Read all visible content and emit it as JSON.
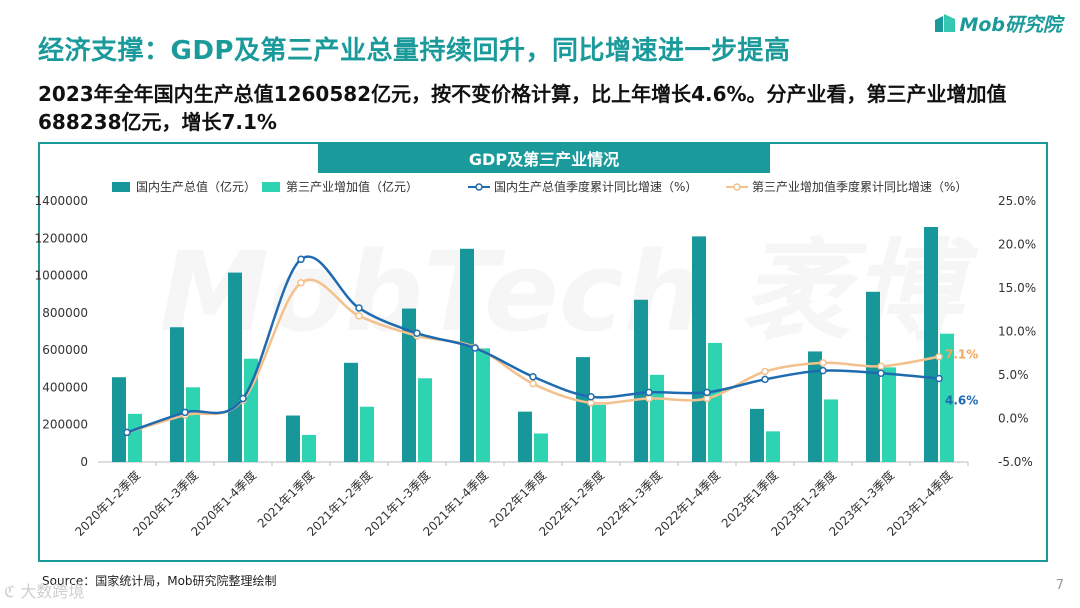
{
  "header": {
    "title": "经济支撑：GDP及第三产业总量持续回升，同比增速进一步提高",
    "subtitle": "2023年全年国内生产总值1260582亿元，按不变价格计算，比上年增长4.6%。分产业看，第三产业增加值688238亿元，增长7.1%",
    "logo_text": "Mob研究院"
  },
  "colors": {
    "accent": "#1b9a9b",
    "gdp_bar": "#17979a",
    "tertiary_bar": "#2ed3b2",
    "gdp_line": "#1f6bb0",
    "tertiary_line": "#f4c08c",
    "label_gdp": "#1f6bb0",
    "label_tertiary": "#f2a65c"
  },
  "footer": {
    "source": "Source：国家统计局，Mob研究院整理绘制",
    "page_number": "7",
    "watermark": "ℭ 大数跨境",
    "bg_watermark": "MobTech 袤博"
  },
  "chart_data": {
    "type": "bar",
    "title": "GDP及第三产业情况",
    "categories": [
      "2020年1-2季度",
      "2020年1-3季度",
      "2020年1-4季度",
      "2021年1季度",
      "2021年1-2季度",
      "2021年1-3季度",
      "2021年1-4季度",
      "2022年1季度",
      "2022年1-2季度",
      "2022年1-3季度",
      "2022年1-4季度",
      "2023年1季度",
      "2023年1-2季度",
      "2023年1-3季度",
      "2023年1-4季度"
    ],
    "y_left": {
      "min": 0,
      "max": 1400000,
      "step": 200000,
      "ticks": [
        "0",
        "200000",
        "400000",
        "600000",
        "800000",
        "1000000",
        "1200000",
        "1400000"
      ]
    },
    "y_right": {
      "min": -5,
      "max": 25,
      "step": 5,
      "ticks": [
        "-5.0%",
        "0.0%",
        "5.0%",
        "10.0%",
        "15.0%",
        "20.0%",
        "25.0%"
      ]
    },
    "series": [
      {
        "name": "国内生产总值（亿元）",
        "kind": "bar",
        "axis": "left",
        "values": [
          454712,
          722786,
          1015986,
          249310,
          532167,
          823131,
          1143670,
          270178,
          562642,
          870269,
          1210207,
          284997,
          593034,
          913027,
          1260582
        ]
      },
      {
        "name": "第三产业增加值（亿元）",
        "kind": "bar",
        "axis": "left",
        "values": [
          258427,
          400686,
          553977,
          145355,
          296611,
          449180,
          609680,
          153037,
          306584,
          467701,
          638698,
          164475,
          335506,
          507519,
          688238
        ]
      },
      {
        "name": "国内生产总值季度累计同比增速（%）",
        "kind": "line",
        "axis": "right",
        "values": [
          -1.6,
          0.7,
          2.3,
          18.3,
          12.7,
          9.8,
          8.1,
          4.8,
          2.5,
          3.0,
          3.0,
          4.5,
          5.5,
          5.2,
          4.6
        ]
      },
      {
        "name": "第三产业增加值季度累计同比增速（%）",
        "kind": "line",
        "axis": "right",
        "values": [
          -1.6,
          0.4,
          2.1,
          15.6,
          11.8,
          9.5,
          8.2,
          4.0,
          1.8,
          2.3,
          2.3,
          5.4,
          6.4,
          6.0,
          7.1
        ]
      }
    ],
    "annotations": [
      {
        "series": 3,
        "index": 14,
        "text": "7.1%"
      },
      {
        "series": 2,
        "index": 14,
        "text": "4.6%"
      }
    ],
    "legend_position": "top"
  }
}
